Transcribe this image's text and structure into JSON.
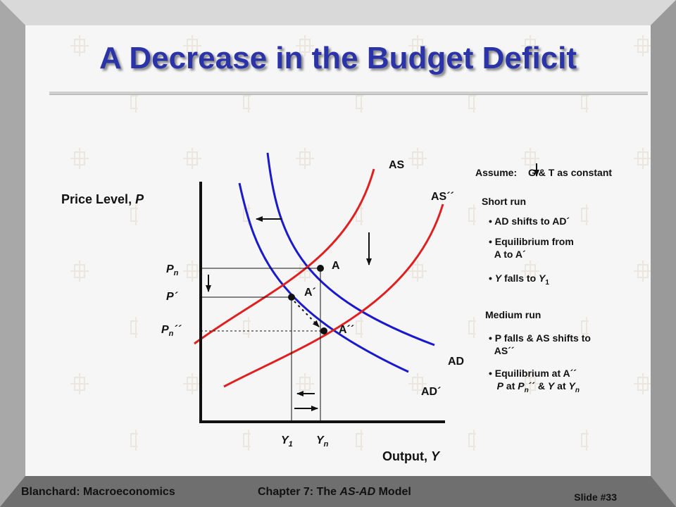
{
  "slide": {
    "title": "A Decrease in the Budget Deficit",
    "footer_left": "Blanchard: Macroeconomics",
    "footer_center_prefix": "Chapter 7: The ",
    "footer_center_italic": "AS-AD",
    "footer_center_suffix": " Model",
    "slide_number": "Slide #33"
  },
  "diagram": {
    "y_axis_label": "Price Level, ",
    "y_axis_var": "P",
    "x_axis_label": "Output, ",
    "x_axis_var": "Y",
    "curves": {
      "as": "AS",
      "as2": "AS´´",
      "ad": "AD",
      "ad1": "AD´"
    },
    "points": {
      "a": "A",
      "a1": "A´",
      "a2": "A´´"
    },
    "price_levels": {
      "pn": "P",
      "pn_sub": "n",
      "p1": "P´",
      "pn2": "P",
      "pn2_sub": "n",
      "pn2_suffix": "´´"
    },
    "outputs": {
      "y1": "Y",
      "y1_sub": "1",
      "yn": "Y",
      "yn_sub": "n"
    },
    "colors": {
      "as_curves": "#e02020",
      "ad_curves": "#1a1acc",
      "axes": "#111111",
      "title": "#2b33a8"
    }
  },
  "notes": {
    "assume_prefix": "Assume: ",
    "assume_suffix": "G & T as constant",
    "short_run": "Short run",
    "sr1": "AD shifts to AD´",
    "sr2_line1": "Equilibrium from",
    "sr2_line2": "A to A´",
    "sr3_var": "Y",
    "sr3_text": " falls to ",
    "sr3_var2": "Y",
    "sr3_sub": "1",
    "medium_run": "Medium run",
    "mr1_line1": "P falls & AS shifts to",
    "mr1_line2": "AS´´",
    "mr2_line1": "Equilibrium at A´´",
    "mr2_p": "P",
    "mr2_at": " at ",
    "mr2_pn": "P",
    "mr2_pn_sub": "n",
    "mr2_mid": "´´ & ",
    "mr2_y": "Y",
    "mr2_at2": " at ",
    "mr2_yn": "Y",
    "mr2_yn_sub": "n",
    "bullet": "•"
  }
}
